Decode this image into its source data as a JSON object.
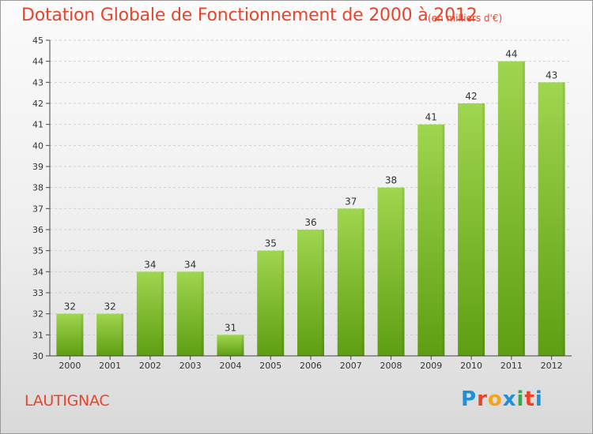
{
  "header": {
    "title": "Dotation Globale de Fonctionnement de 2000 à 2012",
    "subtitle": "(en milliers d'€)"
  },
  "footer": {
    "commune": "LAUTIGNAC",
    "logo": "Proxiti",
    "logo_colors": [
      "#1f8fd6",
      "#e8442a",
      "#f2a51a",
      "#1f8fd6",
      "#3aa84a",
      "#e8442a",
      "#1f8fd6"
    ]
  },
  "colors": {
    "title": "#e8442a",
    "bar_top": "#9fd64f",
    "bar_bottom": "#5e9e12",
    "axis": "#444444",
    "grid": "#d0d0d0"
  },
  "chart_data": {
    "type": "bar",
    "title": "Dotation Globale de Fonctionnement de 2000 à 2012",
    "subtitle": "(en milliers d'€)",
    "xlabel": "",
    "ylabel": "",
    "categories": [
      "2000",
      "2001",
      "2002",
      "2003",
      "2004",
      "2005",
      "2006",
      "2007",
      "2008",
      "2009",
      "2010",
      "2011",
      "2012"
    ],
    "values": [
      32,
      32,
      34,
      34,
      31,
      35,
      36,
      37,
      38,
      41,
      42,
      44,
      43
    ],
    "ylim": [
      30,
      45
    ],
    "yticks": [
      30,
      31,
      32,
      33,
      34,
      35,
      36,
      37,
      38,
      39,
      40,
      41,
      42,
      43,
      44,
      45
    ],
    "grid": true,
    "data_labels": true
  }
}
